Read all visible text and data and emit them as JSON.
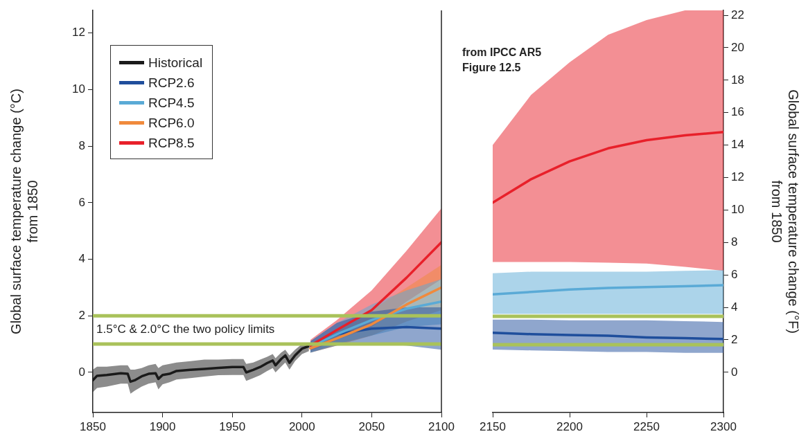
{
  "chart_data": [
    {
      "type": "line",
      "ylabel": "Global surface temperature change (°C)\nfrom 1850",
      "xlim": [
        1850,
        2100
      ],
      "xticks": [
        1850,
        1900,
        1950,
        2000,
        2050,
        2100
      ],
      "ylim": [
        -1.42,
        12.8
      ],
      "yticks": [
        0,
        2,
        4,
        6,
        8,
        10,
        12
      ],
      "legend": "top left",
      "grid": false,
      "marker": "none",
      "ref_lines": [
        {
          "axis": "y",
          "value": 2,
          "color": "#a9c25a"
        },
        {
          "axis": "y",
          "value": 1,
          "color": "#a9c25a"
        }
      ],
      "annotations": [
        "1.5°C & 2.0°C the two policy limits"
      ],
      "series": [
        {
          "name": "Historical",
          "color": "#1a1a1a",
          "x": [
            1850,
            1853,
            1860,
            1870,
            1875,
            1877,
            1880,
            1885,
            1890,
            1895,
            1897,
            1900,
            1905,
            1910,
            1920,
            1930,
            1940,
            1950,
            1958,
            1960,
            1965,
            1970,
            1975,
            1979,
            1981,
            1985,
            1988,
            1991,
            1995,
            2000,
            2005
          ],
          "values": [
            -0.28,
            -0.12,
            -0.09,
            -0.03,
            -0.05,
            -0.33,
            -0.28,
            -0.14,
            -0.05,
            -0.03,
            -0.23,
            -0.09,
            -0.05,
            0.05,
            0.09,
            0.12,
            0.16,
            0.19,
            0.19,
            0,
            0.09,
            0.19,
            0.33,
            0.42,
            0.25,
            0.47,
            0.6,
            0.34,
            0.6,
            0.84,
            0.93
          ],
          "upper": [
            0.1,
            0.2,
            0.2,
            0.25,
            0.25,
            0.1,
            0.1,
            0.15,
            0.25,
            0.3,
            0.15,
            0.25,
            0.3,
            0.35,
            0.4,
            0.45,
            0.45,
            0.47,
            0.47,
            0.3,
            0.35,
            0.45,
            0.55,
            0.65,
            0.5,
            0.7,
            0.8,
            0.6,
            0.8,
            1.0,
            1.05
          ],
          "lower": [
            -0.7,
            -0.55,
            -0.5,
            -0.4,
            -0.4,
            -0.75,
            -0.65,
            -0.5,
            -0.4,
            -0.35,
            -0.6,
            -0.42,
            -0.35,
            -0.25,
            -0.2,
            -0.15,
            -0.1,
            -0.09,
            -0.09,
            -0.3,
            -0.2,
            -0.1,
            0.05,
            0.15,
            0,
            0.2,
            0.35,
            0.1,
            0.4,
            0.65,
            0.75
          ]
        },
        {
          "name": "RCP2.6",
          "color": "#1f4e9c",
          "x": [
            2006,
            2025,
            2050,
            2075,
            2100
          ],
          "values": [
            0.9,
            1.35,
            1.55,
            1.6,
            1.55
          ],
          "lower": [
            0.7,
            0.95,
            1.0,
            0.95,
            0.8
          ],
          "upper": [
            1.1,
            1.75,
            2.15,
            2.3,
            2.3
          ]
        },
        {
          "name": "RCP4.5",
          "color": "#5aaad6",
          "x": [
            2006,
            2025,
            2050,
            2075,
            2100
          ],
          "values": [
            0.9,
            1.35,
            1.85,
            2.25,
            2.5
          ],
          "lower": [
            0.7,
            1.0,
            1.3,
            1.6,
            1.7
          ],
          "upper": [
            1.1,
            1.75,
            2.4,
            2.9,
            3.3
          ]
        },
        {
          "name": "RCP6.0",
          "color": "#f08a3c",
          "x": [
            2006,
            2025,
            2050,
            2075,
            2100
          ],
          "values": [
            0.85,
            1.2,
            1.7,
            2.4,
            3.0
          ],
          "lower": [
            0.7,
            0.95,
            1.3,
            1.8,
            2.2
          ],
          "upper": [
            1.0,
            1.5,
            2.2,
            3.0,
            3.8
          ]
        },
        {
          "name": "RCP8.5",
          "color": "#e8202a",
          "x": [
            2006,
            2025,
            2050,
            2075,
            2100
          ],
          "values": [
            0.95,
            1.5,
            2.2,
            3.35,
            4.6
          ],
          "lower": [
            0.75,
            1.15,
            1.6,
            2.5,
            3.3
          ],
          "upper": [
            1.15,
            1.85,
            2.9,
            4.3,
            5.8
          ]
        }
      ]
    },
    {
      "type": "line",
      "y2label": "Global surface temperature change (°F)\nfrom 1850",
      "xlim": [
        2150,
        2300
      ],
      "xticks": [
        2150,
        2200,
        2250,
        2300
      ],
      "y2lim": [
        -2.48,
        22.3
      ],
      "y2ticks": [
        0,
        2,
        4,
        6,
        8,
        10,
        12,
        14,
        16,
        18,
        20,
        22
      ],
      "grid": false,
      "marker": "none",
      "ref_lines": [
        {
          "axis": "y2",
          "value": 3.45,
          "color": "#a9c25a"
        },
        {
          "axis": "y2",
          "value": 1.7,
          "color": "#a9c25a"
        }
      ],
      "annotations": [
        "from IPCC AR5\nFigure 12.5"
      ],
      "series": [
        {
          "color": "#1f4e9c",
          "axis": "y2",
          "x": [
            2150,
            2175,
            2200,
            2225,
            2250,
            2275,
            2300
          ],
          "values": [
            2.44,
            2.35,
            2.3,
            2.25,
            2.15,
            2.1,
            2.05
          ],
          "upper": [
            3.25,
            3.25,
            3.2,
            3.2,
            3.2,
            3.15,
            3.1
          ],
          "lower": [
            1.4,
            1.35,
            1.3,
            1.25,
            1.25,
            1.2,
            1.2
          ]
        },
        {
          "color": "#5aaad6",
          "axis": "y2",
          "x": [
            2150,
            2175,
            2200,
            2225,
            2250,
            2275,
            2300
          ],
          "values": [
            4.8,
            4.95,
            5.1,
            5.2,
            5.25,
            5.3,
            5.37
          ],
          "upper": [
            6.1,
            6.2,
            6.2,
            6.2,
            6.2,
            6.25,
            6.3
          ],
          "lower": [
            3.6,
            3.6,
            3.6,
            3.6,
            3.6,
            3.6,
            3.6
          ]
        },
        {
          "color": "#e8202a",
          "axis": "y2",
          "x": [
            2150,
            2175,
            2200,
            2225,
            2250,
            2275,
            2300
          ],
          "values": [
            10.45,
            11.9,
            13.0,
            13.8,
            14.3,
            14.6,
            14.8
          ],
          "upper": [
            14.0,
            17.1,
            19.1,
            20.8,
            21.7,
            22.3,
            22.3
          ],
          "lower": [
            6.8,
            6.8,
            6.8,
            6.75,
            6.7,
            6.5,
            6.25
          ]
        }
      ]
    }
  ]
}
